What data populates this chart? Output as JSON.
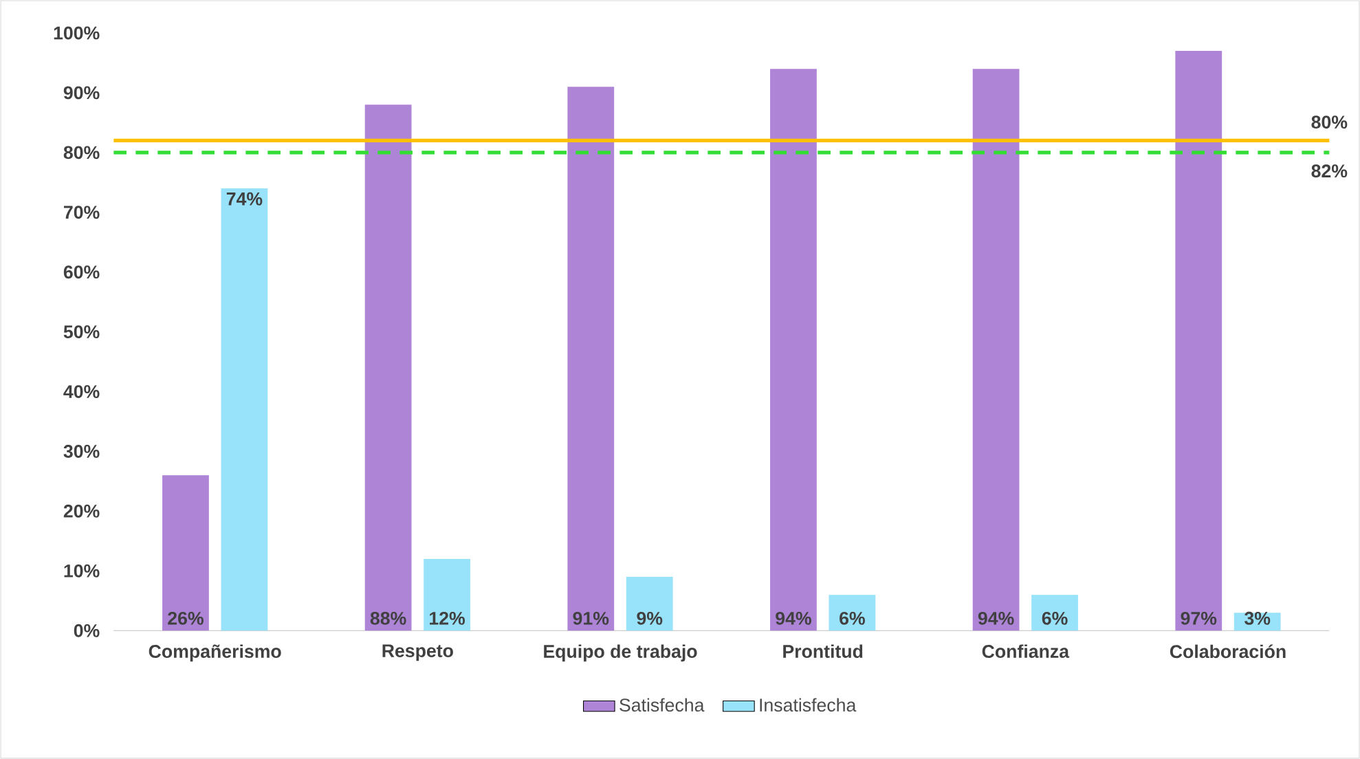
{
  "chart_data": {
    "type": "bar",
    "categories": [
      "Compañerismo",
      "Respeto",
      "Equipo de trabajo",
      "Prontitud",
      "Confianza",
      "Colaboración"
    ],
    "series": [
      {
        "name": "Satisfecha",
        "color": "#ae84d6",
        "values": [
          26,
          88,
          91,
          94,
          94,
          97
        ],
        "value_labels": [
          "26%",
          "88%",
          "91%",
          "94%",
          "94%",
          "97%"
        ]
      },
      {
        "name": "Insatisfecha",
        "color": "#99e3fa",
        "values": [
          74,
          12,
          9,
          6,
          6,
          3
        ],
        "value_labels": [
          "74%",
          "12%",
          "9%",
          "6%",
          "6%",
          "3%"
        ]
      }
    ],
    "ylim": [
      0,
      100
    ],
    "yticks": [
      {
        "value": 0,
        "label": "0%"
      },
      {
        "value": 10,
        "label": "10%"
      },
      {
        "value": 20,
        "label": "20%"
      },
      {
        "value": 30,
        "label": "30%"
      },
      {
        "value": 40,
        "label": "40%"
      },
      {
        "value": 50,
        "label": "50%"
      },
      {
        "value": 60,
        "label": "60%"
      },
      {
        "value": 70,
        "label": "70%"
      },
      {
        "value": 80,
        "label": "80%"
      },
      {
        "value": 90,
        "label": "90%"
      },
      {
        "value": 100,
        "label": "100%"
      }
    ],
    "ref_lines": [
      {
        "axis": "y",
        "value": 82,
        "label": "82%",
        "color": "#ffc000",
        "line_style": "solid"
      },
      {
        "axis": "y",
        "value": 80,
        "label": "80%",
        "color": "#33dd33",
        "line_style": "dashed"
      }
    ],
    "grid": false,
    "legend": "bottom"
  }
}
